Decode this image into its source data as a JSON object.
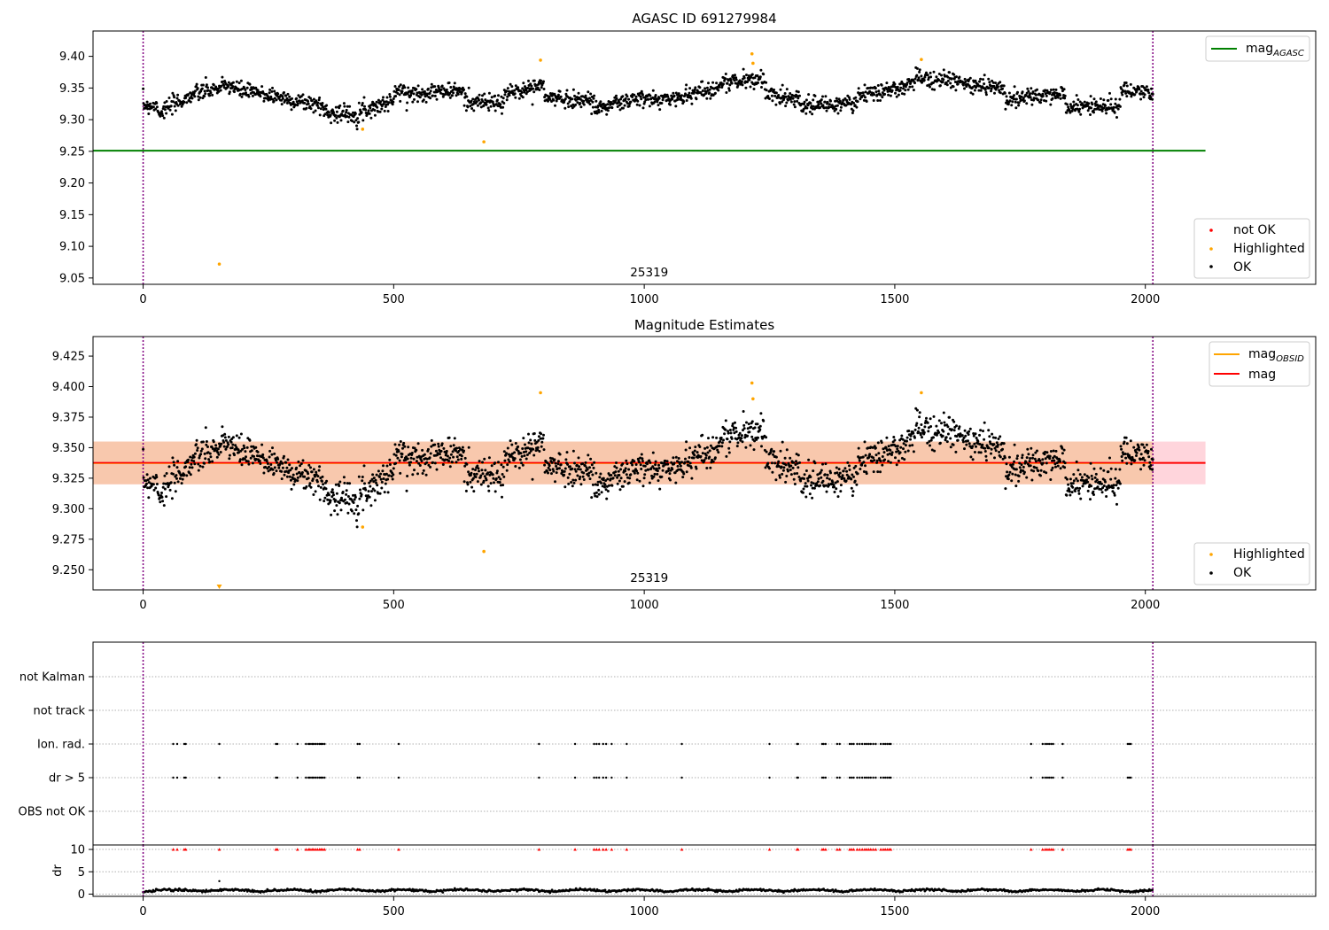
{
  "colors": {
    "ok": "#000000",
    "highlighted": "#ffa500",
    "not_ok": "#ff0000",
    "mag_agasc_line": "#008000",
    "mag_line": "#ff0000",
    "mag_obsid_line": "#ffa500",
    "obs_band": "#f7c5a5",
    "mag_band": "#ffd0d8",
    "boundary": "#800080",
    "grid": "#b0b0b0"
  },
  "chart_data": [
    {
      "type": "scatter",
      "title": "AGASC ID 691279984",
      "xlim": [
        -100,
        2340
      ],
      "ylim": [
        9.04,
        9.44
      ],
      "xticks": [
        0,
        500,
        1000,
        1500,
        2000
      ],
      "yticks": [
        9.05,
        9.1,
        9.15,
        9.2,
        9.25,
        9.3,
        9.35,
        9.4
      ],
      "ytick_labels": [
        "9.05",
        "9.10",
        "9.15",
        "9.20",
        "9.25",
        "9.30",
        "9.35",
        "9.40"
      ],
      "obsid_label": "25319",
      "obsid_label_x": 1010,
      "obs_boundaries": [
        0,
        2015
      ],
      "mag_agasc": 9.251,
      "mag_agasc_span": [
        -100,
        2120
      ],
      "legend_lines": [
        {
          "label": "mag",
          "sub": "AGASC",
          "color": "#008000"
        }
      ],
      "legend_points": [
        {
          "label": "not OK",
          "color": "#ff0000"
        },
        {
          "label": "Highlighted",
          "color": "#ffa500"
        },
        {
          "label": "OK",
          "color": "#000000"
        }
      ],
      "highlighted": [
        [
          152,
          9.072
        ],
        [
          438,
          9.285
        ],
        [
          680,
          9.265
        ],
        [
          793,
          9.394
        ],
        [
          1215,
          9.404
        ],
        [
          1217,
          9.389
        ],
        [
          1553,
          9.395
        ]
      ],
      "ok_segments": [
        {
          "x0": 0,
          "x1": 30,
          "a": 9.323,
          "b": 9.322
        },
        {
          "x0": 30,
          "x1": 100,
          "a": 9.31,
          "b": 9.34
        },
        {
          "x0": 100,
          "x1": 180,
          "a": 9.34,
          "b": 9.355
        },
        {
          "x0": 180,
          "x1": 280,
          "a": 9.348,
          "b": 9.335
        },
        {
          "x0": 280,
          "x1": 360,
          "a": 9.333,
          "b": 9.322
        },
        {
          "x0": 360,
          "x1": 430,
          "a": 9.312,
          "b": 9.308
        },
        {
          "x0": 430,
          "x1": 500,
          "a": 9.312,
          "b": 9.33
        },
        {
          "x0": 500,
          "x1": 560,
          "a": 9.345,
          "b": 9.34
        },
        {
          "x0": 560,
          "x1": 640,
          "a": 9.345,
          "b": 9.345
        },
        {
          "x0": 640,
          "x1": 720,
          "a": 9.33,
          "b": 9.325
        },
        {
          "x0": 720,
          "x1": 800,
          "a": 9.34,
          "b": 9.355
        },
        {
          "x0": 800,
          "x1": 900,
          "a": 9.335,
          "b": 9.33
        },
        {
          "x0": 900,
          "x1": 1000,
          "a": 9.318,
          "b": 9.335
        },
        {
          "x0": 1000,
          "x1": 1080,
          "a": 9.33,
          "b": 9.335
        },
        {
          "x0": 1080,
          "x1": 1150,
          "a": 9.34,
          "b": 9.35
        },
        {
          "x0": 1150,
          "x1": 1240,
          "a": 9.358,
          "b": 9.365
        },
        {
          "x0": 1240,
          "x1": 1310,
          "a": 9.34,
          "b": 9.335
        },
        {
          "x0": 1310,
          "x1": 1420,
          "a": 9.322,
          "b": 9.325
        },
        {
          "x0": 1420,
          "x1": 1540,
          "a": 9.335,
          "b": 9.355
        },
        {
          "x0": 1540,
          "x1": 1620,
          "a": 9.368,
          "b": 9.362
        },
        {
          "x0": 1620,
          "x1": 1720,
          "a": 9.358,
          "b": 9.35
        },
        {
          "x0": 1720,
          "x1": 1840,
          "a": 9.332,
          "b": 9.34
        },
        {
          "x0": 1840,
          "x1": 1950,
          "a": 9.32,
          "b": 9.322
        },
        {
          "x0": 1950,
          "x1": 2015,
          "a": 9.345,
          "b": 9.34
        }
      ],
      "ok_noise": 0.012
    },
    {
      "type": "scatter",
      "title": "Magnitude Estimates",
      "xlim": [
        -100,
        2340
      ],
      "ylim": [
        9.2335,
        9.441
      ],
      "xticks": [
        0,
        500,
        1000,
        1500,
        2000
      ],
      "yticks": [
        9.25,
        9.275,
        9.3,
        9.325,
        9.35,
        9.375,
        9.4,
        9.425
      ],
      "ytick_labels": [
        "9.250",
        "9.275",
        "9.300",
        "9.325",
        "9.350",
        "9.375",
        "9.400",
        "9.425"
      ],
      "obsid_label": "25319",
      "obsid_label_x": 1010,
      "obs_boundaries": [
        0,
        2015
      ],
      "mag": 9.3375,
      "mag_band": [
        9.32,
        9.355
      ],
      "mag_band_span": [
        -100,
        2120
      ],
      "obs_band_span": [
        -100,
        2015
      ],
      "legend_lines": [
        {
          "label": "mag",
          "sub": "OBSID",
          "color": "#ffa500"
        },
        {
          "label": "mag",
          "sub": "",
          "color": "#ff0000"
        }
      ],
      "legend_points": [
        {
          "label": "Highlighted",
          "color": "#ffa500"
        },
        {
          "label": "OK",
          "color": "#000000"
        }
      ],
      "highlighted": [
        [
          438,
          9.285
        ],
        [
          680,
          9.265
        ],
        [
          793,
          9.395
        ],
        [
          1215,
          9.403
        ],
        [
          1217,
          9.39
        ],
        [
          1553,
          9.395
        ]
      ],
      "offscale_below": [
        152
      ]
    },
    {
      "type": "scatter",
      "categories": [
        "not Kalman",
        "not track",
        "Ion. rad.",
        "dr > 5",
        "OBS not OK"
      ],
      "xlim": [
        -100,
        2340
      ],
      "flag_times": [
        60,
        68,
        82,
        85,
        152,
        265,
        268,
        308,
        325,
        330,
        333,
        337,
        340,
        344,
        348,
        352,
        355,
        358,
        362,
        428,
        432,
        510,
        790,
        862,
        900,
        905,
        910,
        918,
        924,
        935,
        965,
        1075,
        1250,
        1305,
        1307,
        1355,
        1358,
        1362,
        1385,
        1390,
        1410,
        1414,
        1418,
        1425,
        1430,
        1435,
        1440,
        1444,
        1448,
        1452,
        1457,
        1462,
        1472,
        1477,
        1481,
        1485,
        1489,
        1492,
        1772,
        1795,
        1800,
        1804,
        1808,
        1812,
        1816,
        1835,
        1965,
        1968,
        1971
      ],
      "flag_rows": [
        "Ion. rad.",
        "dr > 5"
      ],
      "obs_boundaries": [
        0,
        2015
      ]
    },
    {
      "type": "scatter",
      "ylabel": "dr",
      "xlim": [
        -100,
        2340
      ],
      "ylim": [
        -0.5,
        11
      ],
      "yticks": [
        0,
        5,
        10
      ],
      "xticks": [
        0,
        500,
        1000,
        1500,
        2000
      ],
      "capped_value": 10,
      "outlier": [
        152,
        2.9
      ],
      "obs_boundaries": [
        0,
        2015
      ]
    }
  ]
}
